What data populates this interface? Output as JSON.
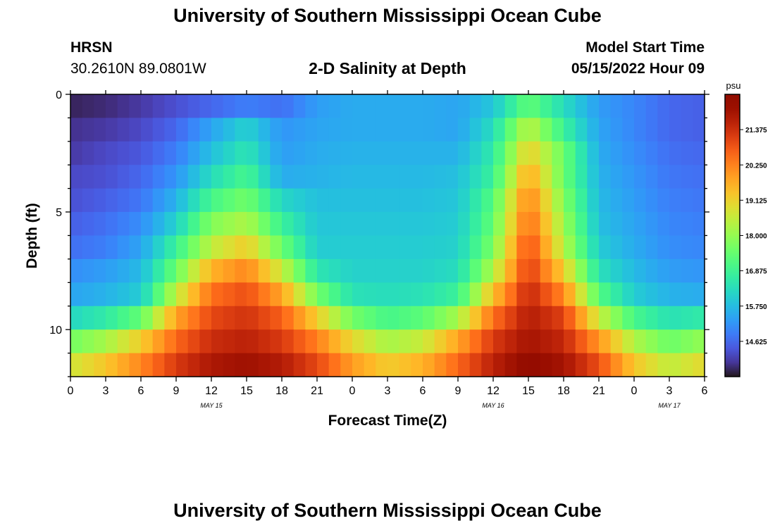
{
  "header": {
    "title": "University of Southern Mississippi Ocean Cube",
    "station": "HRSN",
    "coordinates": "30.2610N  89.0801W",
    "plot_title": "2-D Salinity at Depth",
    "model_start_label": "Model Start Time",
    "model_start_value": "05/15/2022 Hour 09"
  },
  "footer": {
    "title": "University of Southern Mississippi Ocean Cube"
  },
  "chart_data": {
    "type": "heatmap",
    "title": "2-D Salinity at Depth",
    "xlabel": "Forecast Time(Z)",
    "ylabel": "Depth (ft)",
    "x_hours_range": [
      0,
      54
    ],
    "y_range": [
      0,
      12
    ],
    "x_tick_hours": [
      0,
      3,
      6,
      9,
      12,
      15,
      18,
      21,
      24,
      27,
      30,
      33,
      36,
      39,
      42,
      45,
      48,
      51,
      54
    ],
    "x_tick_labels": [
      "0",
      "3",
      "6",
      "9",
      "12",
      "15",
      "18",
      "21",
      "0",
      "3",
      "6",
      "9",
      "12",
      "15",
      "18",
      "21",
      "0",
      "3",
      "6"
    ],
    "y_tick_values": [
      0,
      5,
      10
    ],
    "y_tick_labels": [
      "0",
      "5",
      "10"
    ],
    "date_labels": [
      {
        "hour": 12,
        "text": "MAY 15"
      },
      {
        "hour": 36,
        "text": "MAY 16"
      },
      {
        "hour": 51,
        "text": "MAY 17"
      }
    ],
    "colorbar": {
      "unit": "psu",
      "min": 13.5,
      "max": 22.5,
      "ticks": [
        21.375,
        20.25,
        19.125,
        18.0,
        16.875,
        15.75,
        14.625
      ],
      "tick_labels": [
        "21.375",
        "20.250",
        "19.125",
        "18.000",
        "16.875",
        "15.750",
        "14.625"
      ],
      "colormap": "turbo"
    },
    "depth_layers": [
      0.5,
      1.5,
      2.5,
      3.5,
      4.5,
      5.5,
      6.5,
      7.5,
      8.5,
      9.5,
      10.5,
      11.5
    ],
    "time_hours": [
      0,
      3,
      6,
      9,
      12,
      15,
      18,
      21,
      24,
      27,
      30,
      33,
      36,
      39,
      42,
      45,
      48,
      51,
      54
    ],
    "salinity_psu": [
      [
        13.7,
        13.8,
        14.0,
        14.3,
        14.6,
        14.9,
        14.7,
        15.3,
        15.5,
        15.5,
        15.5,
        15.4,
        15.9,
        17.4,
        16.3,
        15.3,
        15.0,
        14.6,
        14.5
      ],
      [
        13.9,
        14.0,
        14.2,
        14.6,
        15.4,
        16.1,
        15.2,
        15.4,
        15.5,
        15.5,
        15.5,
        15.4,
        16.3,
        18.5,
        16.8,
        15.4,
        15.0,
        14.6,
        14.5
      ],
      [
        14.0,
        14.2,
        14.4,
        14.9,
        15.8,
        16.5,
        15.3,
        15.5,
        15.6,
        15.6,
        15.6,
        15.6,
        16.6,
        19.2,
        17.5,
        15.5,
        15.1,
        14.7,
        14.6
      ],
      [
        14.2,
        14.3,
        14.6,
        15.2,
        16.3,
        17.0,
        15.5,
        15.6,
        15.7,
        15.7,
        15.7,
        15.8,
        16.8,
        19.8,
        17.5,
        15.6,
        15.2,
        14.8,
        14.7
      ],
      [
        14.3,
        14.5,
        14.8,
        15.6,
        17.0,
        17.6,
        16.2,
        15.8,
        15.8,
        15.8,
        15.8,
        15.9,
        17.2,
        20.3,
        17.8,
        15.7,
        15.3,
        14.9,
        14.8
      ],
      [
        14.5,
        14.7,
        15.1,
        16.1,
        17.8,
        18.3,
        16.8,
        15.9,
        15.9,
        15.9,
        15.9,
        16.0,
        17.4,
        20.6,
        18.1,
        15.8,
        15.4,
        15.0,
        14.9
      ],
      [
        14.7,
        14.9,
        15.4,
        16.8,
        18.5,
        19.2,
        17.5,
        16.0,
        16.0,
        16.0,
        16.0,
        16.1,
        17.7,
        21.0,
        18.4,
        16.0,
        15.5,
        15.1,
        15.0
      ],
      [
        15.1,
        15.3,
        15.7,
        17.5,
        19.6,
        20.2,
        18.6,
        16.5,
        16.1,
        16.1,
        16.1,
        16.3,
        18.3,
        21.2,
        19.2,
        16.4,
        15.7,
        15.3,
        15.2
      ],
      [
        15.4,
        15.6,
        16.0,
        18.5,
        20.5,
        20.9,
        19.8,
        17.6,
        16.4,
        16.3,
        16.4,
        16.8,
        19.4,
        21.5,
        20.2,
        17.2,
        16.0,
        15.6,
        15.5
      ],
      [
        16.2,
        16.6,
        17.4,
        19.8,
        21.0,
        21.3,
        20.7,
        19.2,
        17.6,
        17.0,
        17.3,
        18.2,
        20.5,
        21.7,
        21.1,
        18.6,
        17.0,
        16.4,
        16.6
      ],
      [
        17.6,
        18.2,
        19.2,
        20.6,
        21.4,
        21.6,
        21.2,
        20.3,
        19.0,
        18.2,
        18.6,
        19.8,
        21.2,
        21.9,
        21.5,
        20.0,
        18.3,
        17.5,
        18.0
      ],
      [
        18.7,
        19.3,
        20.2,
        21.2,
        21.8,
        22.0,
        21.7,
        21.0,
        19.9,
        19.2,
        19.6,
        20.6,
        21.6,
        22.3,
        21.9,
        20.9,
        19.3,
        18.5,
        19.0
      ]
    ]
  }
}
